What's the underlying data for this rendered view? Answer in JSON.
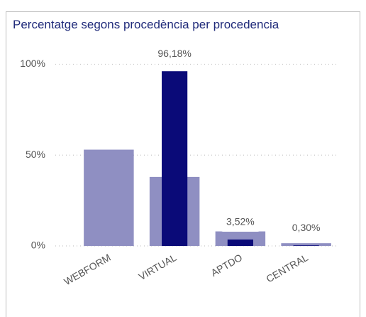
{
  "chart_data": {
    "type": "bar",
    "title": "Percentatge segons procedència per procedencia",
    "categories": [
      "WEBFORM",
      "VIRTUAL",
      "APTDO",
      "CENTRAL"
    ],
    "series": [
      {
        "color": "#8f8fc2",
        "values": [
          53,
          38,
          8,
          1.5
        ]
      },
      {
        "color": "#0a0a78",
        "values": [
          null,
          96.18,
          3.52,
          0.3
        ],
        "value_labels": [
          null,
          "96,18%",
          "3,52%",
          "0,30%"
        ]
      }
    ],
    "ylim": [
      0,
      108
    ],
    "yticks": [
      {
        "value": 0,
        "label": "0%"
      },
      {
        "value": 50,
        "label": "50%"
      },
      {
        "value": 100,
        "label": "100%"
      }
    ],
    "grid": true
  }
}
